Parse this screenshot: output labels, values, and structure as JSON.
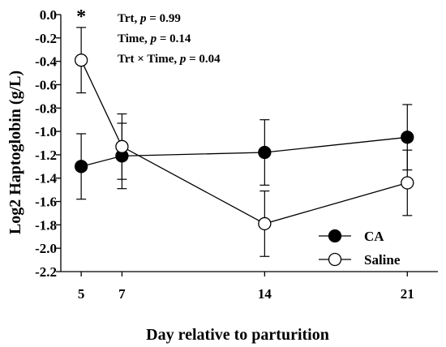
{
  "chart_data": {
    "type": "line",
    "xlabel": "Day relative to parturition",
    "ylabel": "Log2 Haptoglobin (g/L)",
    "x": [
      5,
      7,
      14,
      21
    ],
    "x_ticks": [
      "5",
      "7",
      "14",
      "21"
    ],
    "xlim": [
      4,
      22.5
    ],
    "ylim": [
      -2.2,
      0.0
    ],
    "y_ticks": [
      "0.0",
      "-0.2",
      "-0.4",
      "-0.6",
      "-0.8",
      "-1.0",
      "-1.2",
      "-1.4",
      "-1.6",
      "-1.8",
      "-2.0",
      "-2.2"
    ],
    "y_tick_values": [
      0.0,
      -0.2,
      -0.4,
      -0.6,
      -0.8,
      -1.0,
      -1.2,
      -1.4,
      -1.6,
      -1.8,
      -2.0,
      -2.2
    ],
    "grid": false,
    "legend_position": "bottom-right",
    "series": [
      {
        "name": "CA",
        "marker": "filled-circle",
        "color": "#000000",
        "values": [
          -1.3,
          -1.21,
          -1.18,
          -1.05
        ],
        "error": [
          0.28,
          0.28,
          0.28,
          0.28
        ]
      },
      {
        "name": "Saline",
        "marker": "open-circle",
        "color": "#000000",
        "values": [
          -0.39,
          -1.13,
          -1.79,
          -1.44
        ],
        "error": [
          0.28,
          0.28,
          0.28,
          0.28
        ]
      }
    ],
    "annotations": {
      "significance_marker": "*",
      "significance_x": 5,
      "stats": [
        {
          "label": "Trt, ",
          "p_symbol": "p",
          "value": " = 0.99"
        },
        {
          "label": "Time, ",
          "p_symbol": "p",
          "value": " = 0.14"
        },
        {
          "label": "Trt × Time, ",
          "p_symbol": "p",
          "value": " = 0.04"
        }
      ]
    }
  }
}
